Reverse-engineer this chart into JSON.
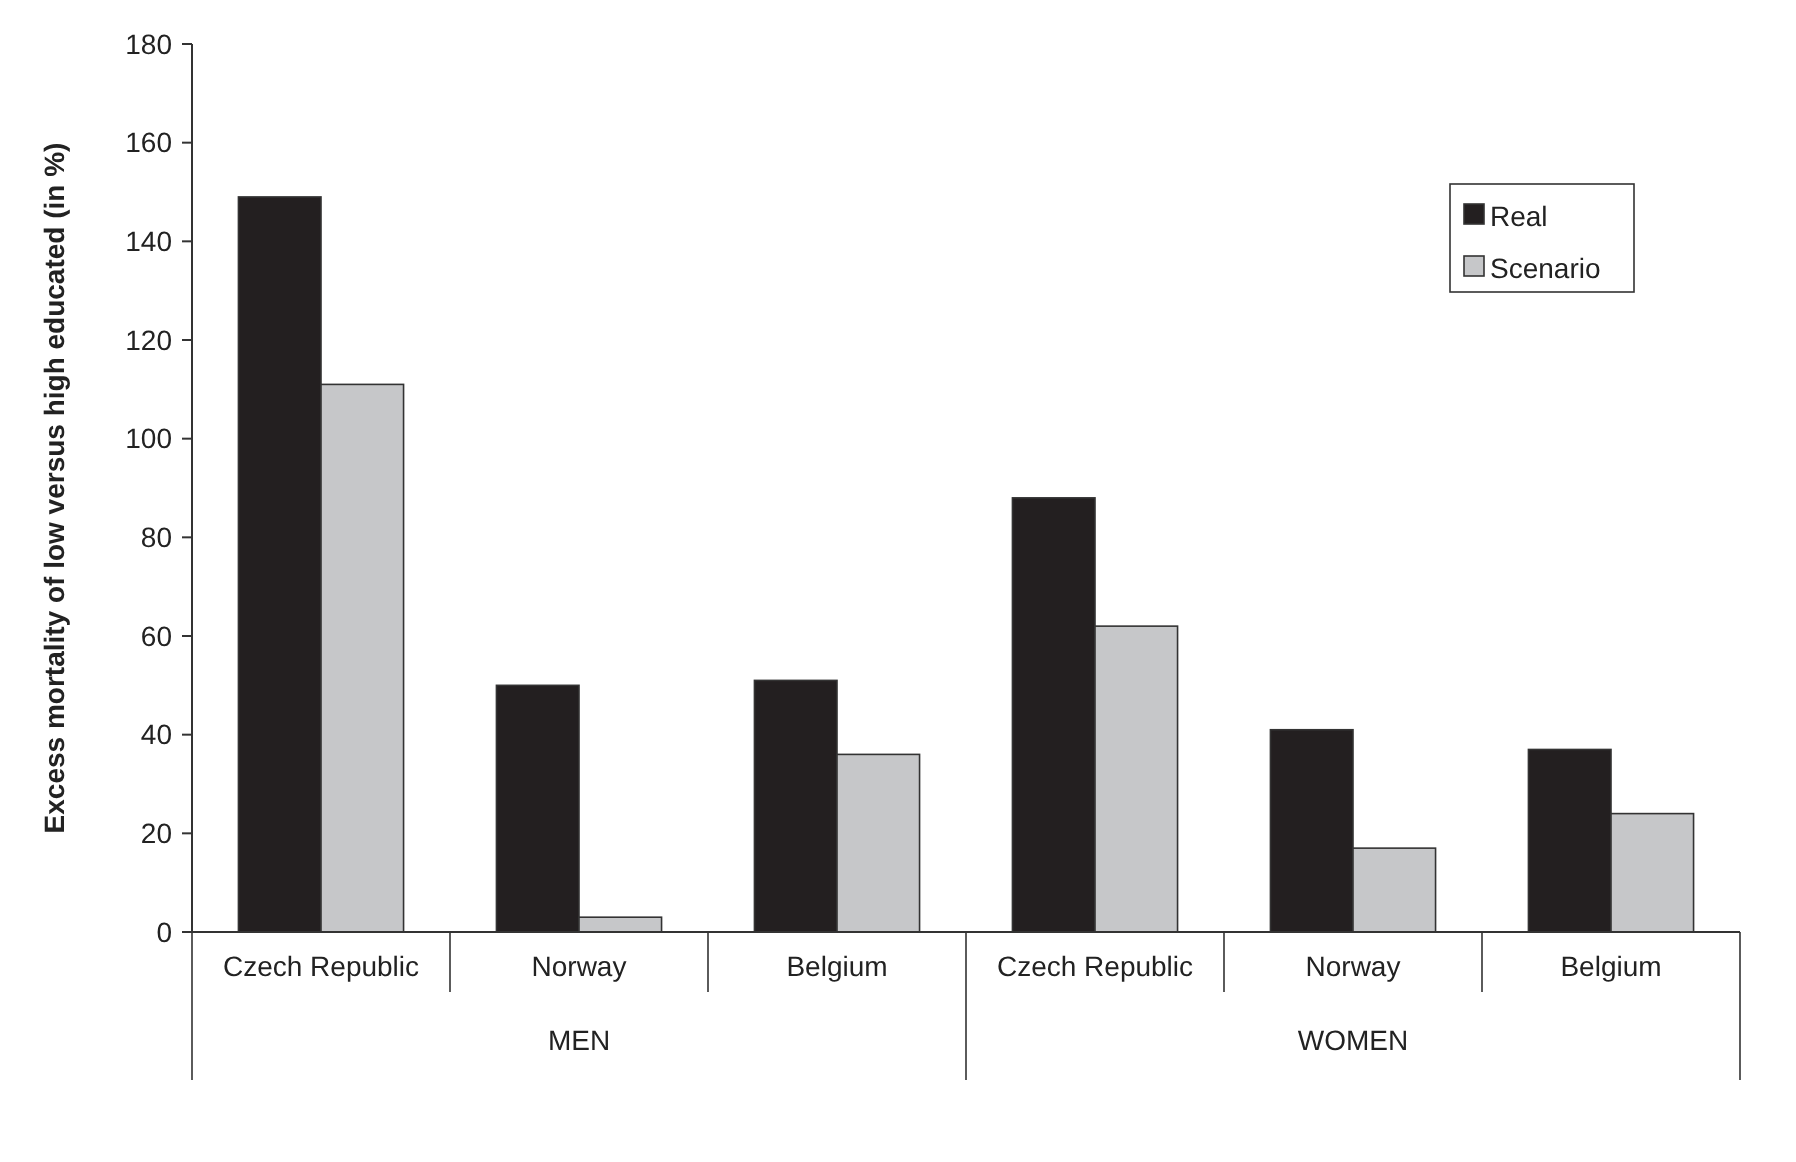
{
  "chart_data": {
    "type": "bar",
    "ylabel": "Excess mortality of low versus high educated (in %)",
    "categories": [
      "Czech Republic",
      "Norway",
      "Belgium",
      "Czech Republic",
      "Norway",
      "Belgium"
    ],
    "annotations": [
      "MEN",
      "WOMEN"
    ],
    "series": [
      {
        "name": "Real",
        "color": "#231f20",
        "values": [
          149,
          50,
          51,
          88,
          41,
          37
        ]
      },
      {
        "name": "Scenario",
        "color": "#c6c7c9",
        "values": [
          111,
          3,
          36,
          62,
          17,
          24
        ]
      }
    ],
    "ylim": [
      0,
      180
    ],
    "yticks": [
      0,
      20,
      40,
      60,
      80,
      100,
      120,
      140,
      160,
      180
    ],
    "grid": false,
    "legend": "top right"
  }
}
